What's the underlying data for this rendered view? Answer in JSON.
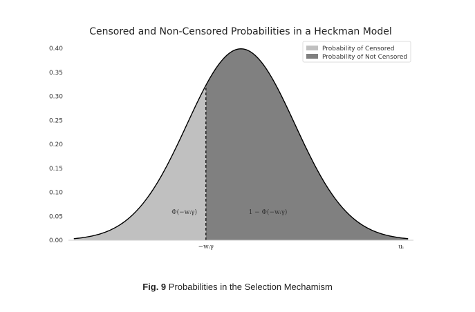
{
  "chart_data": {
    "type": "area",
    "title": "Censored and Non-Censored Probabilities in a Heckman Model",
    "xlabel": "",
    "ylabel": "",
    "ylim": [
      0,
      0.42
    ],
    "xlim": [
      -3.2,
      3.2
    ],
    "yticks": [
      "0.00",
      "0.05",
      "0.10",
      "0.15",
      "0.20",
      "0.25",
      "0.30",
      "0.35",
      "0.40"
    ],
    "ytick_values": [
      0,
      0.05,
      0.1,
      0.15,
      0.2,
      0.25,
      0.3,
      0.35,
      0.4
    ],
    "distribution": "standard normal density",
    "threshold": -0.65,
    "threshold_label": "−wᵢγ",
    "x_axis_end_label": "uᵢ",
    "series": [
      {
        "name": "Probability of Censored",
        "color": "#c0c0c0",
        "region": "x < threshold"
      },
      {
        "name": "Probability of Not Censored",
        "color": "#808080",
        "region": "x > threshold"
      }
    ],
    "annotations": [
      {
        "text": "Φ(−wᵢγ)",
        "x": -1.05,
        "y": 0.055
      },
      {
        "text": "1 − Φ(−wᵢγ)",
        "x": 0.5,
        "y": 0.055
      }
    ],
    "legend_position": "top-right",
    "grid": false
  },
  "caption": {
    "label": "Fig. 9",
    "text": "Probabilities in the Selection Mechamism"
  }
}
